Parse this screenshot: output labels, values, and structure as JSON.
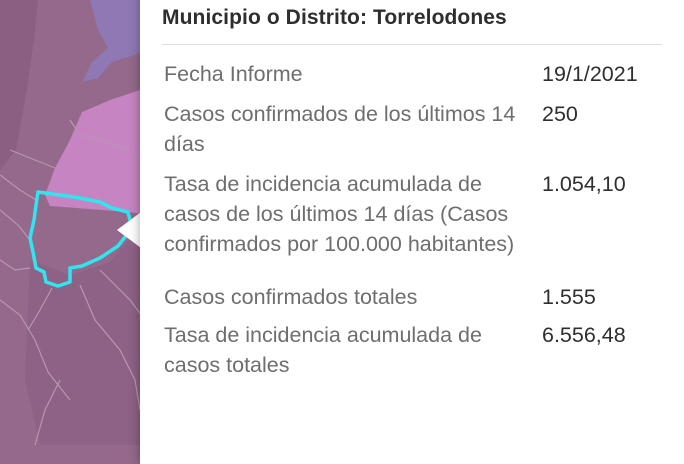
{
  "map": {
    "colors": {
      "background": "#94698b",
      "region_dark": "#8a5f82",
      "region_light": "#c684c2",
      "region_blue": "#8f78b4",
      "selected_outline": "#2fe6ee",
      "boundary_lines": "#b797ae"
    },
    "selected_outline_icon": "municipality-outline"
  },
  "popup": {
    "title": "Municipio o Distrito: Torrelodones",
    "rows": [
      {
        "label": "Fecha Informe",
        "value": "19/1/2021"
      },
      {
        "label": "Casos confirmados de los últimos 14 días",
        "value": "250"
      },
      {
        "label": "Tasa de incidencia acumulada de casos de los últimos 14 días (Casos confirmados por 100.000 habitantes)",
        "value": "1.054,10"
      },
      {
        "label": "Casos confirmados totales",
        "value": "1.555"
      },
      {
        "label": "Tasa de incidencia acumulada de casos totales",
        "value": "6.556,48"
      }
    ]
  }
}
